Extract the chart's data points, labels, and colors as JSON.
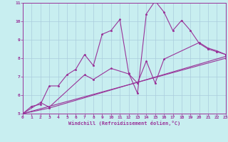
{
  "xlabel": "Windchill (Refroidissement éolien,°C)",
  "background_color": "#c8eef0",
  "line_color": "#993399",
  "grid_color": "#aaccdd",
  "xlim": [
    0,
    23
  ],
  "ylim": [
    5,
    11
  ],
  "xticks": [
    0,
    1,
    2,
    3,
    4,
    5,
    6,
    7,
    8,
    9,
    10,
    11,
    12,
    13,
    14,
    15,
    16,
    17,
    18,
    19,
    20,
    21,
    22,
    23
  ],
  "yticks": [
    5,
    6,
    7,
    8,
    9,
    10,
    11
  ],
  "series1": [
    [
      0,
      5.0
    ],
    [
      1,
      5.4
    ],
    [
      2,
      5.5
    ],
    [
      3,
      6.5
    ],
    [
      4,
      6.5
    ],
    [
      5,
      7.1
    ],
    [
      6,
      7.4
    ],
    [
      7,
      8.2
    ],
    [
      8,
      7.6
    ],
    [
      9,
      9.3
    ],
    [
      10,
      9.5
    ],
    [
      11,
      10.1
    ],
    [
      12,
      7.2
    ],
    [
      13,
      6.1
    ],
    [
      14,
      10.4
    ],
    [
      15,
      11.1
    ],
    [
      16,
      10.5
    ],
    [
      17,
      9.5
    ],
    [
      18,
      10.05
    ],
    [
      19,
      9.5
    ],
    [
      20,
      8.8
    ],
    [
      21,
      8.5
    ],
    [
      22,
      8.35
    ],
    [
      23,
      8.2
    ]
  ],
  "series2": [
    [
      0,
      5.0
    ],
    [
      2,
      5.6
    ],
    [
      3,
      5.35
    ],
    [
      7,
      7.1
    ],
    [
      8,
      6.85
    ],
    [
      10,
      7.45
    ],
    [
      12,
      7.15
    ],
    [
      13,
      6.65
    ],
    [
      14,
      7.85
    ],
    [
      15,
      6.65
    ],
    [
      16,
      7.95
    ],
    [
      20,
      8.85
    ],
    [
      21,
      8.55
    ],
    [
      22,
      8.4
    ],
    [
      23,
      8.2
    ]
  ],
  "series3": [
    [
      0,
      5.0
    ],
    [
      3,
      5.3
    ],
    [
      23,
      8.1
    ]
  ],
  "series4": [
    [
      0,
      5.0
    ],
    [
      23,
      8.0
    ]
  ]
}
